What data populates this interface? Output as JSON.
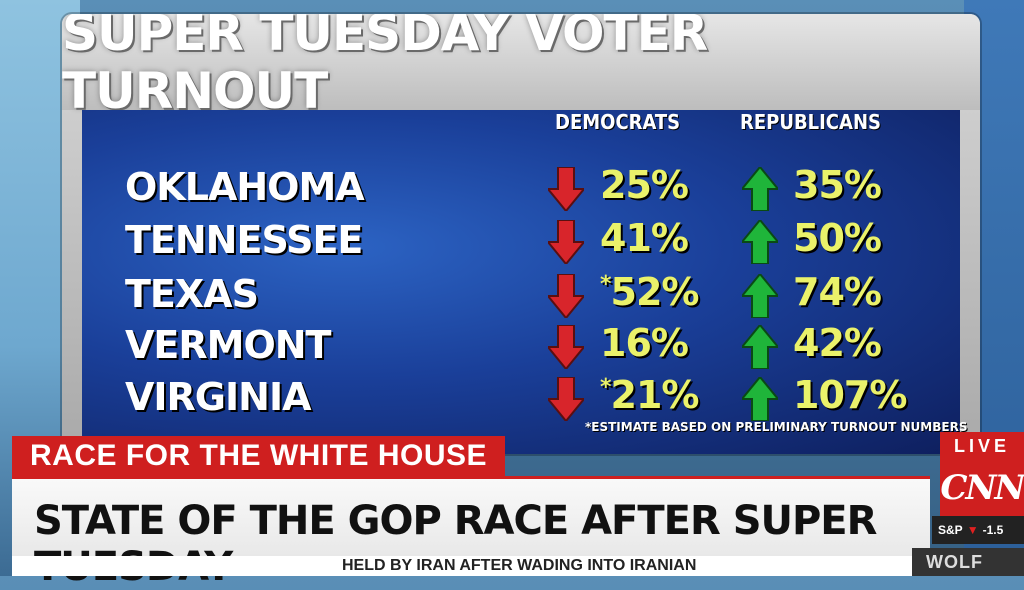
{
  "title": "SUPER TUESDAY VOTER TURNOUT",
  "columns": {
    "democrats": "DEMOCRATS",
    "republicans": "REPUBLICANS"
  },
  "rows": [
    {
      "state": "OKLAHOMA",
      "dem": "25%",
      "dem_star": "",
      "rep": "35%"
    },
    {
      "state": "TENNESSEE",
      "dem": "41%",
      "dem_star": "",
      "rep": "50%"
    },
    {
      "state": "TEXAS",
      "dem": "52%",
      "dem_star": "*",
      "rep": "74%"
    },
    {
      "state": "VERMONT",
      "dem": "16%",
      "dem_star": "",
      "rep": "42%"
    },
    {
      "state": "VIRGINIA",
      "dem": "21%",
      "dem_star": "*",
      "rep": "107%"
    }
  ],
  "footnote": "*ESTIMATE BASED ON PRELIMINARY TURNOUT NUMBERS",
  "lower_third": {
    "tag": "RACE FOR THE WHITE HOUSE",
    "headline": "STATE OF THE GOP RACE AFTER SUPER TUESDAY",
    "crawl": "HELD BY IRAN AFTER WADING INTO IRANIAN"
  },
  "network": {
    "live": "LIVE",
    "logo": "CNN",
    "ticker_label": "S&P",
    "ticker_value": "-1.5"
  },
  "anchor": "WOLF",
  "icons": {
    "down": "red-down-arrow-icon",
    "up": "green-up-arrow-icon"
  },
  "colors": {
    "values": "#eaf26a",
    "down": "#d8252b",
    "up": "#1fb53a",
    "accent": "#cf1f1f"
  }
}
